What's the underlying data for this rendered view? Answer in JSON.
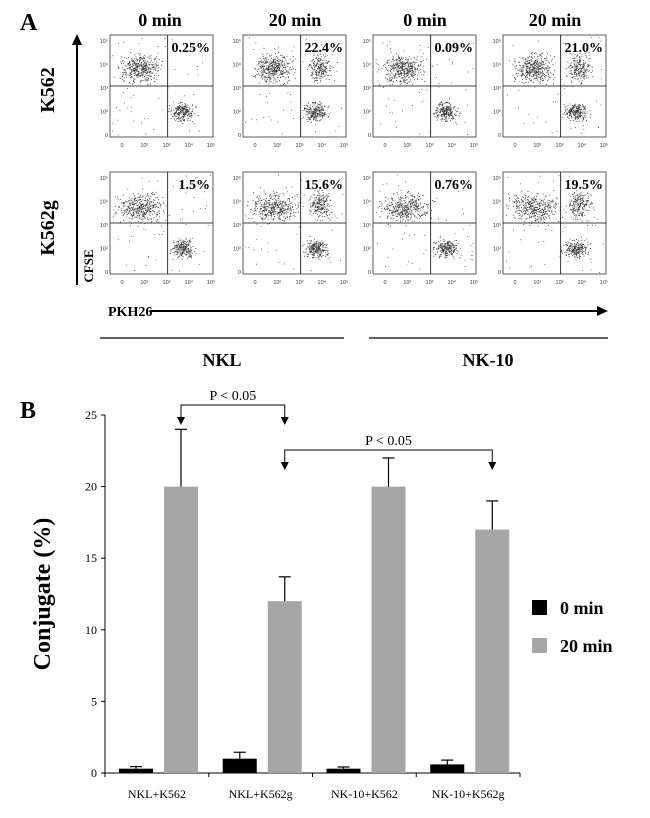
{
  "panel_a": {
    "label": "A",
    "column_headers": [
      "0 min",
      "20 min",
      "0 min",
      "20 min"
    ],
    "row_labels": [
      "K562",
      "K562g"
    ],
    "y_axis_label": "CFSE",
    "x_axis_label": "PKH26",
    "group_labels": [
      "NKL",
      "NK-10"
    ],
    "x_tick_labels": [
      "0",
      "10²",
      "10³",
      "10⁴",
      "10⁵"
    ],
    "y_tick_labels": [
      "10⁵",
      "10⁴",
      "10³",
      "10²",
      "0"
    ],
    "plots": [
      {
        "row": 0,
        "col": 0,
        "percent": "0.25%"
      },
      {
        "row": 0,
        "col": 1,
        "percent": "22.4%"
      },
      {
        "row": 0,
        "col": 2,
        "percent": "0.09%"
      },
      {
        "row": 0,
        "col": 3,
        "percent": "21.0%"
      },
      {
        "row": 1,
        "col": 0,
        "percent": "1.5%"
      },
      {
        "row": 1,
        "col": 1,
        "percent": "15.6%"
      },
      {
        "row": 1,
        "col": 2,
        "percent": "0.76%"
      },
      {
        "row": 1,
        "col": 3,
        "percent": "19.5%"
      }
    ]
  },
  "panel_b": {
    "label": "B",
    "significance": [
      {
        "text": "P < 0.05",
        "from": 0,
        "to": 1
      },
      {
        "text": "P < 0.05",
        "from": 1,
        "to": 3
      }
    ]
  },
  "chart_data": {
    "type": "bar",
    "categories": [
      "NKL+K562",
      "NKL+K562g",
      "NK-10+K562",
      "NK-10+K562g"
    ],
    "series": [
      {
        "name": "0 min",
        "values": [
          0.3,
          1.0,
          0.3,
          0.6
        ],
        "errors": [
          0.15,
          0.45,
          0.12,
          0.3
        ],
        "color": "#000000"
      },
      {
        "name": "20 min",
        "values": [
          20,
          12,
          20,
          17
        ],
        "errors": [
          4,
          1.7,
          2,
          2
        ],
        "color": "#a6a6a6"
      }
    ],
    "ylabel": "Conjugate (%)",
    "xlabel": "",
    "ylim": [
      0,
      25
    ],
    "yticks": [
      0,
      5,
      10,
      15,
      20,
      25
    ],
    "legend": "right",
    "grid": false
  }
}
